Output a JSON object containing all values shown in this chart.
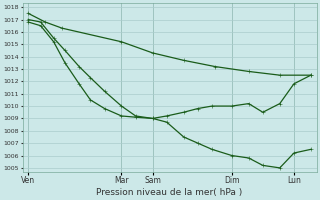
{
  "bg_color": "#cce8e8",
  "grid_color": "#aacccc",
  "line_color": "#1a5c1a",
  "marker_color": "#1a5c1a",
  "xlabel": "Pression niveau de la mer( hPa )",
  "xtick_labels": [
    "Ven",
    "Mar",
    "Sam",
    "Dim",
    "Lun"
  ],
  "xtick_positions": [
    0.0,
    0.33,
    0.44,
    0.72,
    0.94
  ],
  "ylim": [
    1005,
    1018
  ],
  "ytick_min": 1005,
  "ytick_max": 1018,
  "line1_x": [
    0.0,
    0.06,
    0.12,
    0.33,
    0.44,
    0.55,
    0.66,
    0.78,
    0.89,
    1.0
  ],
  "line1_y": [
    1017.5,
    1016.8,
    1016.3,
    1015.2,
    1014.3,
    1013.7,
    1013.2,
    1012.8,
    1012.5,
    1012.5
  ],
  "line2_x": [
    0.0,
    0.044,
    0.09,
    0.13,
    0.18,
    0.22,
    0.27,
    0.33,
    0.38,
    0.44,
    0.49,
    0.55,
    0.6,
    0.65,
    0.72,
    0.78,
    0.83,
    0.89,
    0.94,
    1.0
  ],
  "line2_y": [
    1017.0,
    1016.8,
    1015.5,
    1014.5,
    1013.2,
    1012.3,
    1011.2,
    1010.0,
    1009.2,
    1009.0,
    1008.7,
    1007.5,
    1007.0,
    1006.5,
    1006.0,
    1005.8,
    1005.2,
    1005.0,
    1006.2,
    1006.5
  ],
  "line3_x": [
    0.0,
    0.044,
    0.09,
    0.13,
    0.18,
    0.22,
    0.27,
    0.33,
    0.38,
    0.44,
    0.49,
    0.55,
    0.6,
    0.65,
    0.72,
    0.78,
    0.83,
    0.89,
    0.94,
    1.0
  ],
  "line3_y": [
    1016.8,
    1016.5,
    1015.2,
    1013.5,
    1011.8,
    1010.5,
    1009.8,
    1009.2,
    1009.1,
    1009.0,
    1009.2,
    1009.5,
    1009.8,
    1010.0,
    1010.0,
    1010.2,
    1009.5,
    1010.2,
    1011.8,
    1012.5
  ]
}
